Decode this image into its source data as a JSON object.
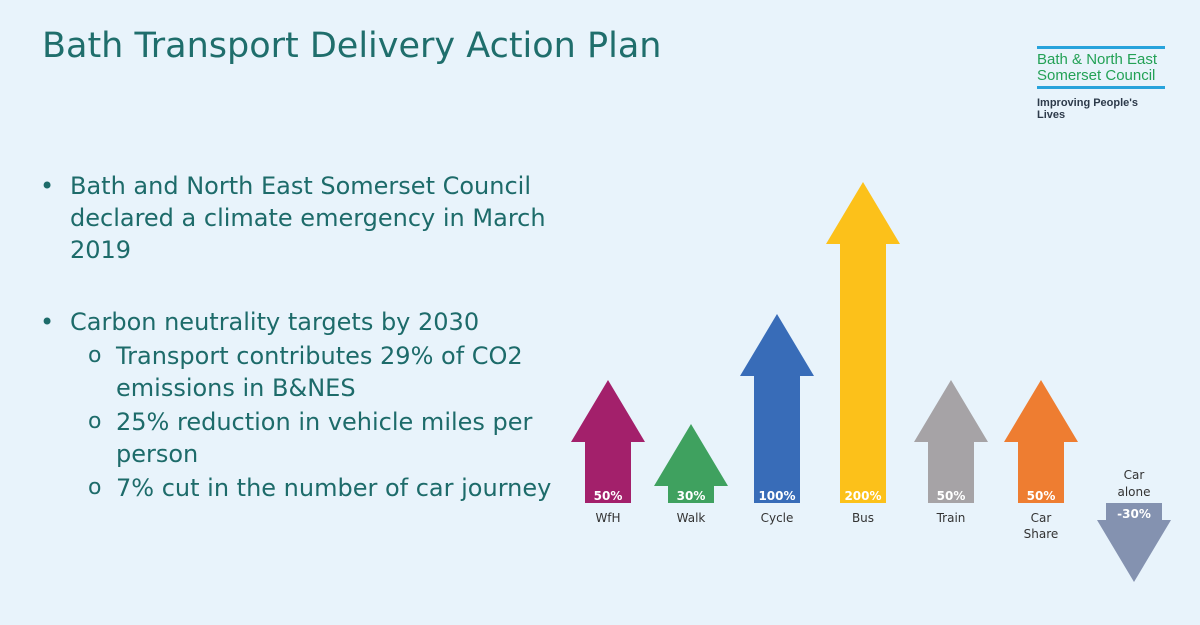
{
  "title": "Bath Transport Delivery Action Plan",
  "logo": {
    "name_line1": "Bath & North East",
    "name_line2": "Somerset Council",
    "tagline": "Improving People's Lives"
  },
  "bullets": [
    {
      "text": "Bath and North East Somerset Council declared a climate emergency in March 2019",
      "sub": []
    },
    {
      "text": "Carbon neutrality targets by 2030",
      "sub": [
        "Transport contributes 29% of CO2 emissions in B&NES",
        "25% reduction in vehicle miles per person",
        "7% cut in the number of car journey"
      ]
    }
  ],
  "chart_data": {
    "type": "bar",
    "categories": [
      "WfH",
      "Walk",
      "Cycle",
      "Bus",
      "Train",
      "Car Share",
      "Car alone"
    ],
    "values": [
      50,
      30,
      100,
      200,
      50,
      50,
      -30
    ],
    "labels": [
      "50%",
      "30%",
      "100%",
      "200%",
      "50%",
      "50%",
      "-30%"
    ],
    "colors": [
      "#a3206b",
      "#3fa15f",
      "#386cb8",
      "#fcc11a",
      "#a6a3a6",
      "#ee7d31",
      "#8492b0"
    ]
  }
}
